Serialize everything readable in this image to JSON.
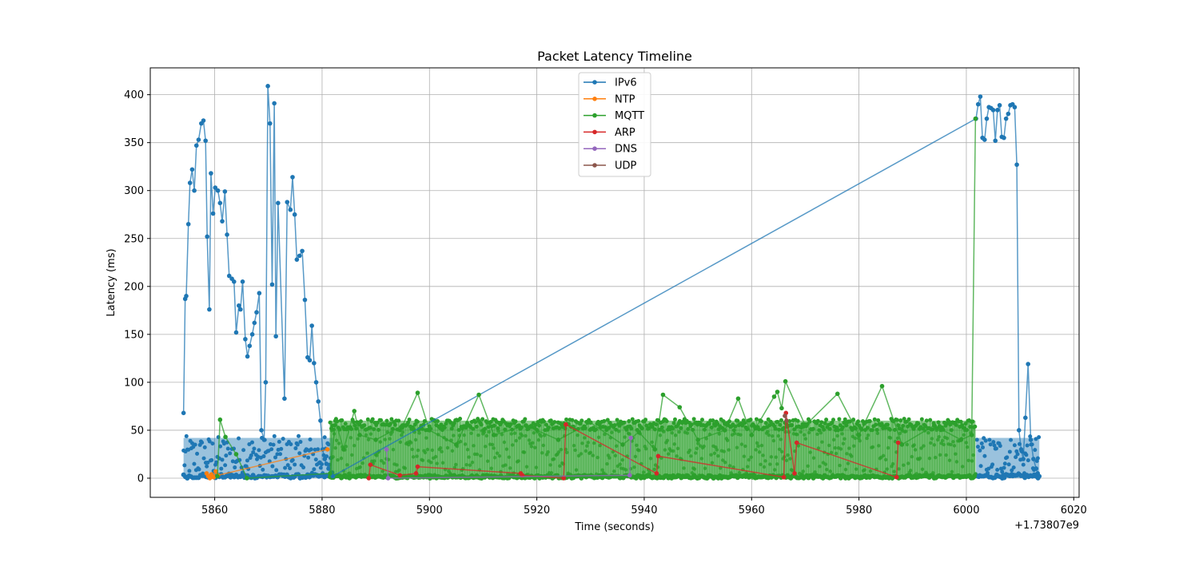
{
  "chart_data": {
    "type": "line",
    "title": "Packet Latency Timeline",
    "xlabel": "Time (seconds)",
    "ylabel": "Latency (ms)",
    "x_offset_label": "+1.73807e9",
    "xlim": [
      5848,
      6021
    ],
    "ylim": [
      -20,
      428
    ],
    "x_ticks": [
      5860,
      5880,
      5900,
      5920,
      5940,
      5960,
      5980,
      6000,
      6020
    ],
    "y_ticks": [
      0,
      50,
      100,
      150,
      200,
      250,
      300,
      350,
      400
    ],
    "grid": true,
    "legend_position": "upper center",
    "series": [
      {
        "name": "IPv6",
        "color": "#1f77b4",
        "x": [
          5854.2,
          5854.5,
          5854.7,
          5855.1,
          5855.4,
          5855.8,
          5856.2,
          5856.6,
          5857.0,
          5857.5,
          5857.9,
          5858.3,
          5858.6,
          5859.0,
          5859.3,
          5859.7,
          5860.1,
          5860.6,
          5861.0,
          5861.4,
          5861.9,
          5862.3,
          5862.7,
          5863.2,
          5863.6,
          5864.0,
          5864.5,
          5864.8,
          5865.2,
          5865.7,
          5866.1,
          5866.5,
          5867.0,
          5867.4,
          5867.8,
          5868.3,
          5868.7,
          5869.2,
          5869.5,
          5869.9,
          5870.3,
          5870.7,
          5871.1,
          5871.4,
          5871.8,
          5873.0,
          5873.5,
          5874.1,
          5874.5,
          5874.9,
          5875.3,
          5875.8,
          5876.3,
          5876.8,
          5877.3,
          5877.7,
          5878.1,
          5878.5,
          5878.9,
          5879.3,
          5879.7,
          5880.1,
          5880.5,
          5880.8,
          5881.2,
          5881.6,
          5882.0,
          6001.8,
          6002.2,
          6002.6,
          6003.0,
          6003.4,
          6003.8,
          6004.2,
          6004.6,
          6005.0,
          6005.4,
          6005.8,
          6006.2,
          6006.6,
          6007.0,
          6007.4,
          6007.8,
          6008.2,
          6008.6,
          6009.0,
          6009.4,
          6009.8,
          6010.2,
          6010.6,
          6011.0,
          6011.5,
          6012.0,
          6012.5,
          6013.0,
          6013.3,
          6013.6
        ],
        "y": [
          68,
          187,
          190,
          265,
          308,
          322,
          300,
          347,
          353,
          370,
          373,
          352,
          252,
          176,
          318,
          276,
          303,
          300,
          287,
          268,
          299,
          254,
          211,
          208,
          205,
          152,
          180,
          176,
          205,
          145,
          127,
          138,
          150,
          162,
          173,
          193,
          50,
          40,
          100,
          409,
          370,
          202,
          391,
          148,
          287,
          83,
          288,
          280,
          314,
          275,
          228,
          232,
          237,
          186,
          126,
          123,
          159,
          120,
          100,
          80,
          60,
          30,
          20,
          15,
          10,
          5,
          2,
          375,
          390,
          398,
          355,
          353,
          375,
          387,
          386,
          384,
          352,
          384,
          389,
          356,
          355,
          375,
          380,
          389,
          390,
          387,
          327,
          50,
          30,
          20,
          63,
          119,
          40,
          20,
          10,
          5,
          2
        ]
      },
      {
        "name": "NTP",
        "color": "#ff7f0e",
        "x": [
          5858.5,
          5858.8,
          5859.1,
          5859.4,
          5859.8,
          5860.2,
          5860.6,
          5881.0
        ],
        "y": [
          5,
          2,
          0,
          4,
          1,
          7,
          3,
          30
        ]
      },
      {
        "name": "MQTT",
        "color": "#2ca02c",
        "x": [
          5860.5,
          5861.0,
          5862.0,
          5864.0,
          5866.0,
          5881.5,
          5882.5,
          5884.0,
          5886.0,
          5887.0,
          5890.0,
          5895.0,
          5897.8,
          5900.0,
          5905.0,
          5909.2,
          5912.0,
          5918.0,
          5924.0,
          5930.0,
          5936.0,
          5939.0,
          5942.0,
          5943.5,
          5946.6,
          5950.0,
          5955.0,
          5957.5,
          5960.0,
          5964.2,
          5964.8,
          5965.6,
          5966.3,
          5970.0,
          5976.0,
          5980.0,
          5984.3,
          5988.0,
          5994.0,
          5999.0,
          6001.0,
          6001.7
        ],
        "y": [
          2,
          61,
          43,
          25,
          0,
          5,
          60,
          30,
          70,
          45,
          40,
          55,
          89,
          50,
          35,
          87,
          45,
          55,
          40,
          58,
          35,
          48,
          30,
          87,
          74,
          40,
          50,
          83,
          45,
          85,
          90,
          73,
          101,
          55,
          88,
          45,
          96,
          35,
          55,
          40,
          45,
          375
        ]
      },
      {
        "name": "ARP",
        "color": "#d62728",
        "x": [
          5888.7,
          5889.0,
          5894.5,
          5897.5,
          5897.8,
          5917.0,
          5917.3,
          5925.0,
          5925.4,
          5942.3,
          5942.6,
          5966.0,
          5966.4,
          5968.0,
          5968.4,
          5987.0,
          5987.3
        ],
        "y": [
          0,
          14,
          3,
          5,
          12,
          5,
          3,
          0,
          56,
          5,
          23,
          1,
          68,
          5,
          37,
          1,
          37
        ]
      },
      {
        "name": "DNS",
        "color": "#9467bd",
        "x": [
          5892.0,
          5892.3,
          5937.3,
          5937.5
        ],
        "y": [
          30,
          0,
          3,
          42
        ]
      },
      {
        "name": "UDP",
        "color": "#8c564b",
        "x": [
          5966.2,
          5966.5
        ],
        "y": [
          65,
          60
        ]
      }
    ]
  }
}
